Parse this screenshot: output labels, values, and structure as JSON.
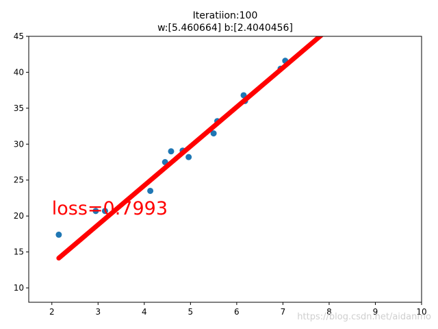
{
  "chart_data": {
    "type": "scatter",
    "title_line1": "Iteratiion:100",
    "title_line2": "w:[5.460664] b:[2.4040456]",
    "xlabel": "",
    "ylabel": "",
    "xlim": [
      1.5,
      10
    ],
    "ylim": [
      8,
      45
    ],
    "xticks": [
      2,
      3,
      4,
      5,
      6,
      7,
      8,
      9,
      10
    ],
    "yticks": [
      10,
      15,
      20,
      25,
      30,
      35,
      40,
      45
    ],
    "grid": false,
    "series": [
      {
        "kind": "scatter",
        "color": "#1f77b4",
        "points": [
          {
            "x": 2.15,
            "y": 17.4
          },
          {
            "x": 2.95,
            "y": 20.7
          },
          {
            "x": 3.15,
            "y": 20.7
          },
          {
            "x": 4.13,
            "y": 23.5
          },
          {
            "x": 4.45,
            "y": 27.5
          },
          {
            "x": 4.58,
            "y": 29.0
          },
          {
            "x": 4.83,
            "y": 29.1
          },
          {
            "x": 4.96,
            "y": 28.2
          },
          {
            "x": 5.5,
            "y": 31.5
          },
          {
            "x": 5.58,
            "y": 33.2
          },
          {
            "x": 6.15,
            "y": 36.8
          },
          {
            "x": 6.18,
            "y": 36.0
          },
          {
            "x": 6.95,
            "y": 40.5
          },
          {
            "x": 7.05,
            "y": 41.6
          }
        ]
      },
      {
        "kind": "line",
        "color": "#ff0000",
        "w": 5.460664,
        "b": 2.4040456,
        "x_start": 2.15
      }
    ],
    "annotation": {
      "text": "loss=0.7993",
      "x": 2.0,
      "y": 20.2,
      "color": "#ff0000"
    }
  },
  "watermark": "https://blog.csdn.net/aidanmo"
}
